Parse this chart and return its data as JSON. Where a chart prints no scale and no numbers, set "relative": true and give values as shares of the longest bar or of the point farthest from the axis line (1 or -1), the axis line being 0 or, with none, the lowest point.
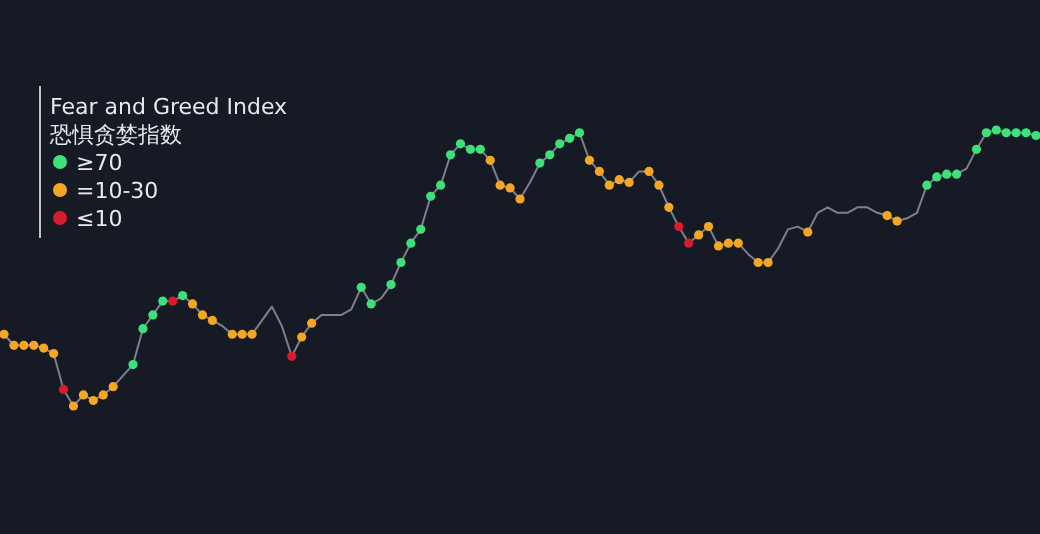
{
  "chart_data": {
    "type": "line",
    "relative": true,
    "legend_title": "Fear and Greed Index\n恐惧贪婪指数",
    "marker": "circle",
    "annotations": [
      "≥70",
      "=10-30",
      "≤10"
    ],
    "categories": [
      null,
      null,
      null,
      null,
      null,
      null,
      null,
      null,
      null,
      null,
      null,
      null,
      null,
      null,
      null,
      null,
      null,
      null,
      null,
      null,
      null,
      null,
      null,
      null,
      null,
      null,
      null,
      null,
      null,
      null,
      null,
      null,
      null,
      null,
      null,
      null,
      null,
      null,
      null,
      null,
      null,
      null,
      null,
      null,
      null,
      null,
      null,
      null,
      null,
      null,
      null,
      null,
      null,
      null,
      null,
      null,
      null,
      null,
      null,
      null,
      null,
      null,
      null,
      null,
      null,
      null,
      null,
      null,
      null,
      null,
      null,
      null,
      null,
      null,
      null,
      null,
      null,
      null,
      null,
      null,
      null,
      null,
      null,
      null,
      null,
      null,
      null,
      null,
      null,
      null,
      null,
      null,
      null,
      null,
      null,
      null,
      null,
      null,
      null,
      null,
      null,
      null,
      null,
      null,
      null
    ],
    "series": [
      {
        "color": "#7d808a",
        "values": [
          0.26,
          0.22,
          0.22,
          0.22,
          0.21,
          0.19,
          0.06,
          0,
          0.04,
          0.02,
          0.04,
          0.07,
          0.11,
          0.15,
          0.28,
          0.33,
          0.38,
          0.38,
          0.4,
          0.37,
          0.33,
          0.31,
          0.29,
          0.26,
          0.26,
          0.26,
          0.31,
          0.36,
          0.29,
          0.18,
          0.25,
          0.3,
          0.33,
          0.33,
          0.33,
          0.35,
          0.43,
          0.37,
          0.39,
          0.44,
          0.52,
          0.59,
          0.64,
          0.76,
          0.8,
          0.91,
          0.95,
          0.93,
          0.93,
          0.89,
          0.8,
          0.79,
          0.75,
          0.81,
          0.88,
          0.91,
          0.95,
          0.97,
          0.99,
          0.89,
          0.85,
          0.8,
          0.82,
          0.81,
          0.85,
          0.85,
          0.8,
          0.72,
          0.65,
          0.59,
          0.62,
          0.65,
          0.58,
          0.59,
          0.59,
          0.55,
          0.52,
          0.52,
          0.57,
          0.64,
          0.65,
          0.63,
          0.7,
          0.72,
          0.7,
          0.7,
          0.72,
          0.72,
          0.7,
          0.69,
          0.67,
          0.68,
          0.7,
          0.8,
          0.83,
          0.84,
          0.84,
          0.86,
          0.93,
          0.99,
          1,
          0.99,
          0.99,
          0.99,
          0.98
        ],
        "colors": [
          "#f5a623",
          "#f5a623",
          "#f5a623",
          "#f5a623",
          "#f5a623",
          "#f5a623",
          "#d81b2a",
          "#f5a623",
          "#f5a623",
          "#f5a623",
          "#f5a623",
          "#f5a623",
          null,
          "#3ee07a",
          "#3ee07a",
          "#3ee07a",
          "#3ee07a",
          "#d81b2a",
          "#3ee07a",
          "#f5a623",
          "#f5a623",
          "#f5a623",
          null,
          "#f5a623",
          "#f5a623",
          "#f5a623",
          null,
          null,
          null,
          "#d81b2a",
          "#f5a623",
          "#f5a623",
          null,
          null,
          null,
          null,
          "#3ee07a",
          "#3ee07a",
          null,
          "#3ee07a",
          "#3ee07a",
          "#3ee07a",
          "#3ee07a",
          "#3ee07a",
          "#3ee07a",
          "#3ee07a",
          "#3ee07a",
          "#3ee07a",
          "#3ee07a",
          "#f5a623",
          "#f5a623",
          "#f5a623",
          "#f5a623",
          null,
          "#3ee07a",
          "#3ee07a",
          "#3ee07a",
          "#3ee07a",
          "#3ee07a",
          "#f5a623",
          "#f5a623",
          "#f5a623",
          "#f5a623",
          "#f5a623",
          null,
          "#f5a623",
          "#f5a623",
          "#f5a623",
          "#d81b2a",
          "#d81b2a",
          "#f5a623",
          "#f5a623",
          "#f5a623",
          "#f5a623",
          "#f5a623",
          null,
          "#f5a623",
          "#f5a623",
          null,
          null,
          null,
          "#f5a623",
          null,
          null,
          null,
          null,
          null,
          null,
          null,
          "#f5a623",
          "#f5a623",
          null,
          null,
          "#3ee07a",
          "#3ee07a",
          "#3ee07a",
          "#3ee07a",
          null,
          "#3ee07a",
          "#3ee07a",
          "#3ee07a",
          "#3ee07a",
          "#3ee07a",
          "#3ee07a",
          "#3ee07a"
        ]
      }
    ]
  }
}
